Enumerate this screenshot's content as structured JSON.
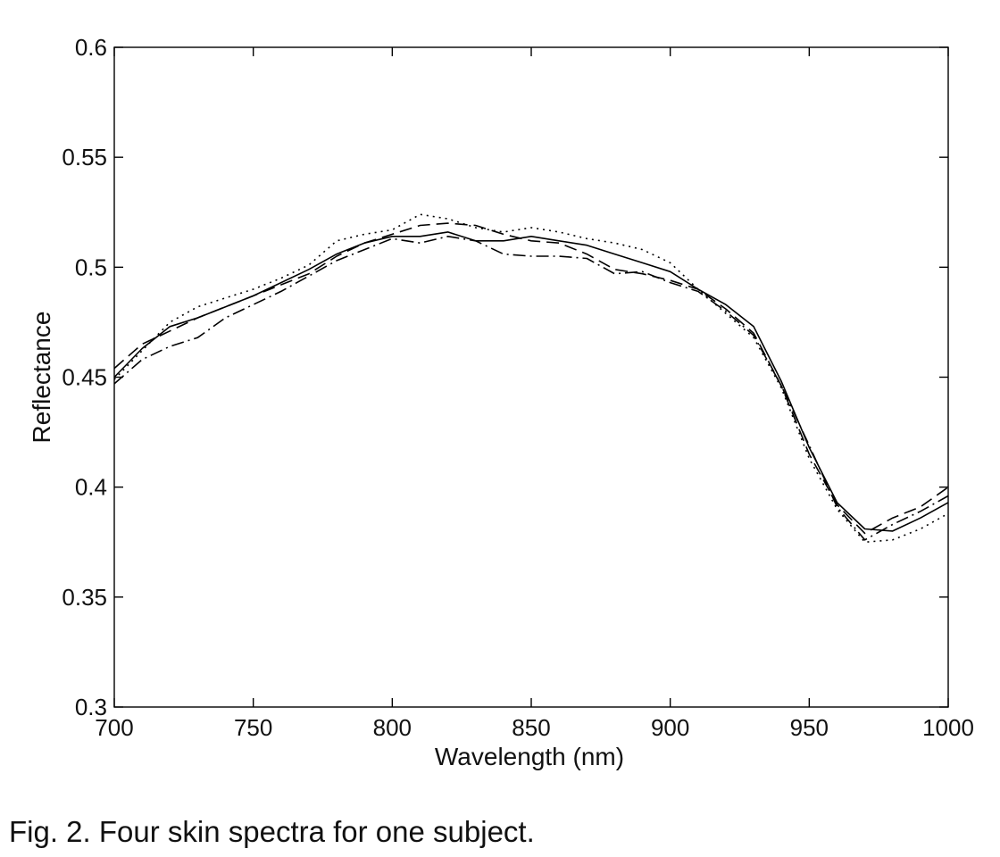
{
  "caption": "Fig. 2. Four skin spectra for one subject.",
  "chart_data": {
    "type": "line",
    "xlabel": "Wavelength (nm)",
    "ylabel": "Reflectance",
    "xlim": [
      700,
      1000
    ],
    "ylim": [
      0.3,
      0.6
    ],
    "xticks": [
      700,
      750,
      800,
      850,
      900,
      950,
      1000
    ],
    "xtick_labels": [
      "700",
      "750",
      "800",
      "850",
      "900",
      "950",
      "1000"
    ],
    "yticks": [
      0.3,
      0.35,
      0.4,
      0.45,
      0.5,
      0.55,
      0.6
    ],
    "ytick_labels": [
      "0.3",
      "0.35",
      "0.4",
      "0.45",
      "0.5",
      "0.55",
      "0.6"
    ],
    "grid": false,
    "legend": "none",
    "x": [
      700,
      710,
      720,
      730,
      740,
      750,
      760,
      770,
      780,
      790,
      800,
      810,
      820,
      830,
      840,
      850,
      860,
      870,
      880,
      890,
      900,
      910,
      920,
      930,
      940,
      950,
      960,
      970,
      980,
      990,
      1000
    ],
    "series": [
      {
        "style": "solid",
        "color": "#000000",
        "values": [
          0.45,
          0.463,
          0.473,
          0.477,
          0.482,
          0.487,
          0.493,
          0.499,
          0.506,
          0.511,
          0.514,
          0.514,
          0.516,
          0.512,
          0.512,
          0.514,
          0.512,
          0.51,
          0.506,
          0.502,
          0.498,
          0.49,
          0.483,
          0.473,
          0.448,
          0.418,
          0.393,
          0.381,
          0.38,
          0.386,
          0.393
        ]
      },
      {
        "style": "dashed",
        "color": "#000000",
        "values": [
          0.454,
          0.465,
          0.471,
          0.477,
          0.482,
          0.487,
          0.492,
          0.497,
          0.505,
          0.511,
          0.515,
          0.519,
          0.52,
          0.519,
          0.515,
          0.512,
          0.511,
          0.506,
          0.499,
          0.497,
          0.494,
          0.49,
          0.481,
          0.47,
          0.446,
          0.415,
          0.392,
          0.379,
          0.386,
          0.391,
          0.4
        ]
      },
      {
        "style": "dotted",
        "color": "#000000",
        "values": [
          0.449,
          0.462,
          0.475,
          0.482,
          0.486,
          0.49,
          0.495,
          0.501,
          0.512,
          0.515,
          0.517,
          0.524,
          0.522,
          0.518,
          0.516,
          0.518,
          0.516,
          0.513,
          0.511,
          0.508,
          0.502,
          0.49,
          0.479,
          0.468,
          0.445,
          0.413,
          0.39,
          0.375,
          0.376,
          0.381,
          0.388
        ]
      },
      {
        "style": "dashdot",
        "color": "#000000",
        "values": [
          0.447,
          0.458,
          0.464,
          0.468,
          0.477,
          0.483,
          0.489,
          0.496,
          0.503,
          0.508,
          0.513,
          0.511,
          0.514,
          0.512,
          0.506,
          0.505,
          0.505,
          0.504,
          0.497,
          0.498,
          0.493,
          0.489,
          0.48,
          0.469,
          0.446,
          0.419,
          0.391,
          0.376,
          0.383,
          0.389,
          0.396
        ]
      }
    ]
  }
}
